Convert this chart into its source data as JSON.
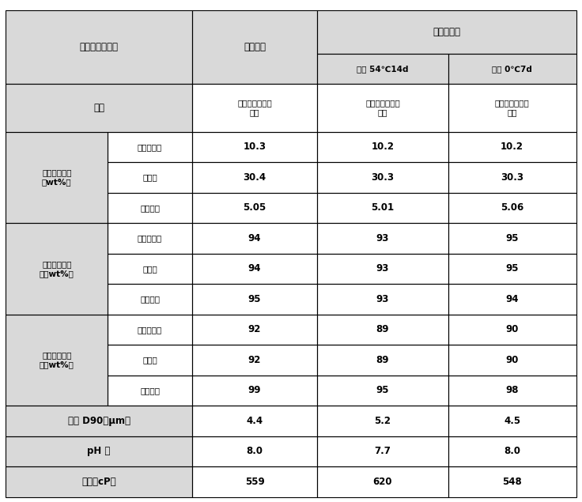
{
  "title": "悬乳剂性能指标",
  "col_header_1": "初始检测",
  "col_header_2": "储存后检测",
  "col_header_2a": "热储 54℃14d",
  "col_header_2b": "冷储 0℃7d",
  "row_waiguan": "外观",
  "waiguan_val": "浅棕色粘稠均相\n液体",
  "sections": [
    {
      "label": "有效成分含量\n（wt%）",
      "rows": [
        {
          "name": "丁硫克百威",
          "v1": "10.3",
          "v2": "10.2",
          "v3": "10.2"
        },
        {
          "name": "毒死蜱",
          "v1": "30.4",
          "v2": "30.3",
          "v3": "30.3"
        },
        {
          "name": "阿维菌素",
          "v1": "5.05",
          "v2": "5.01",
          "v3": "5.06"
        }
      ]
    },
    {
      "label": "有效成分成悬\n率（wt%）",
      "rows": [
        {
          "name": "丁硫克百威",
          "v1": "94",
          "v2": "93",
          "v3": "95"
        },
        {
          "name": "毒死蜱",
          "v1": "94",
          "v2": "93",
          "v3": "95"
        },
        {
          "name": "阿维菌素",
          "v1": "95",
          "v2": "93",
          "v3": "94"
        }
      ]
    },
    {
      "label": "有效成分悬浮\n率（wt%）",
      "rows": [
        {
          "name": "丁硫克百威",
          "v1": "92",
          "v2": "89",
          "v3": "90"
        },
        {
          "name": "毒死蜱",
          "v1": "92",
          "v2": "89",
          "v3": "90"
        },
        {
          "name": "阿维菌素",
          "v1": "99",
          "v2": "95",
          "v3": "98"
        }
      ]
    }
  ],
  "single_rows": [
    {
      "label": "粒径 D90（μm）",
      "v1": "4.4",
      "v2": "5.2",
      "v3": "4.5"
    },
    {
      "label": "pH 值",
      "v1": "8.0",
      "v2": "7.7",
      "v3": "8.0"
    },
    {
      "label": "粘度（cP）",
      "v1": "559",
      "v2": "620",
      "v3": "548"
    }
  ],
  "bg_header": "#d9d9d9",
  "bg_white": "#ffffff",
  "border_color": "#000000",
  "text_color": "#000000",
  "bold_data": true
}
